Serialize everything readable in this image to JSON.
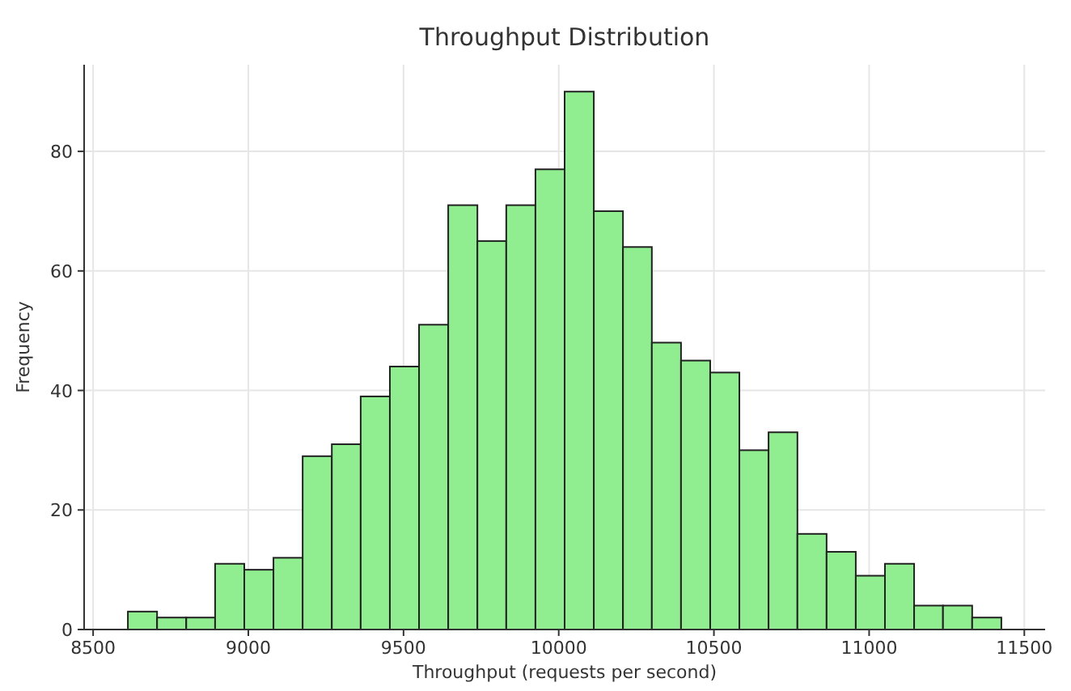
{
  "chart_data": {
    "type": "histogram",
    "title": "Throughput Distribution",
    "xlabel": "Throughput (requests per second)",
    "ylabel": "Frequency",
    "bins": [
      8612,
      8706,
      8800,
      8893,
      8987,
      9081,
      9175,
      9269,
      9362,
      9456,
      9550,
      9644,
      9738,
      9831,
      9925,
      10019,
      10113,
      10207,
      10300,
      10394,
      10488,
      10582,
      10676,
      10769,
      10863,
      10957,
      11051,
      11145,
      11238,
      11332,
      11426
    ],
    "values": [
      3,
      2,
      2,
      11,
      10,
      12,
      29,
      31,
      39,
      44,
      51,
      71,
      65,
      71,
      77,
      90,
      70,
      64,
      48,
      45,
      43,
      30,
      33,
      16,
      13,
      9,
      11,
      4,
      4,
      2
    ],
    "color": "#90ee90",
    "xlim": [
      8471,
      11567
    ],
    "xticks": [
      8500,
      9000,
      9500,
      10000,
      10500,
      11000,
      11500
    ],
    "ylim": [
      0,
      94.5
    ],
    "yticks": [
      0,
      20,
      40,
      60,
      80
    ],
    "grid": true
  }
}
